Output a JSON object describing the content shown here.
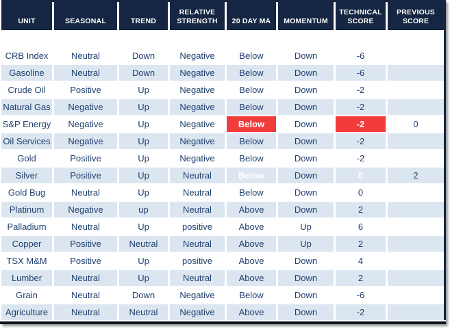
{
  "colors": {
    "header_bg": "#152642",
    "row_alt_bg": "#DCE6F1",
    "text_color": "#1F3F6E",
    "highlight_bg": "#F23B3B",
    "highlight_text": "#FFFFFF",
    "bottom_border": "#0E1520"
  },
  "chart_data": {
    "type": "table",
    "title": "",
    "columns": [
      {
        "id": "unit",
        "label": "UNIT"
      },
      {
        "id": "seasonal",
        "label": "SEASONAL"
      },
      {
        "id": "trend",
        "label": "TREND"
      },
      {
        "id": "relative-strength",
        "label": "RELATIVE STRENGTH"
      },
      {
        "id": "20-day-ma",
        "label": "20 DAY MA"
      },
      {
        "id": "momentum",
        "label": "MOMENTUM"
      },
      {
        "id": "technical-score",
        "label": "TECHNICAL SCORE"
      },
      {
        "id": "previous-score",
        "label": "PREVIOUS SCORE"
      }
    ],
    "rows": [
      [
        "CRB Index",
        "Neutral",
        "Down",
        "Negative",
        "Below",
        "Down",
        "-6",
        ""
      ],
      [
        "Gasoline",
        "Neutral",
        "Down",
        "Negative",
        "Below",
        "Down",
        "-6",
        ""
      ],
      [
        "Crude Oil",
        "Positive",
        "Up",
        "Negative",
        "Below",
        "Down",
        "-2",
        ""
      ],
      [
        "Natural Gas",
        "Negative",
        "Up",
        "Negative",
        "Below",
        "Down",
        "-2",
        ""
      ],
      [
        "S&P Energy",
        "Negative",
        "Up",
        "Negative",
        "Below",
        "Down",
        "-2",
        "0"
      ],
      [
        "Oil Services",
        "Negative",
        "Up",
        "Negative",
        "Below",
        "Down",
        "-2",
        ""
      ],
      [
        "Gold",
        "Positive",
        "Up",
        "Negative",
        "Below",
        "Down",
        "-2",
        ""
      ],
      [
        "Silver",
        "Positive",
        "Up",
        "Neutral",
        "Below",
        "Down",
        "0",
        "2"
      ],
      [
        "Gold Bug",
        "Neutral",
        "Up",
        "Neutral",
        "Below",
        "Down",
        "0",
        ""
      ],
      [
        "Platinum",
        "Negative",
        "up",
        "Neutral",
        "Above",
        "Down",
        "2",
        ""
      ],
      [
        "Palladium",
        "Neutral",
        "Up",
        "positive",
        "Above",
        "Up",
        "6",
        ""
      ],
      [
        "Copper",
        "Positive",
        "Neutral",
        "Neutral",
        "Above",
        "Up",
        "2",
        ""
      ],
      [
        "TSX M&M",
        "Positive",
        "Up",
        "positive",
        "Above",
        "Down",
        "4",
        ""
      ],
      [
        "Lumber",
        "Neutral",
        "Up",
        "Neutral",
        "Above",
        "Down",
        "2",
        ""
      ],
      [
        "Grain",
        "Neutral",
        "Down",
        "Negative",
        "Below",
        "Down",
        "-6",
        ""
      ],
      [
        "Agriculture",
        "Neutral",
        "Neutral",
        "Negative",
        "Above",
        "Down",
        "-2",
        ""
      ]
    ],
    "highlighted_cells": [
      {
        "row_index": 4,
        "col_index": 4
      },
      {
        "row_index": 4,
        "col_index": 6
      },
      {
        "row_index": 7,
        "col_index": 4
      },
      {
        "row_index": 7,
        "col_index": 6
      }
    ],
    "layout_hints": {
      "alternating_row_shading": true,
      "header_position": "top",
      "blank_row_below_header": true
    }
  }
}
